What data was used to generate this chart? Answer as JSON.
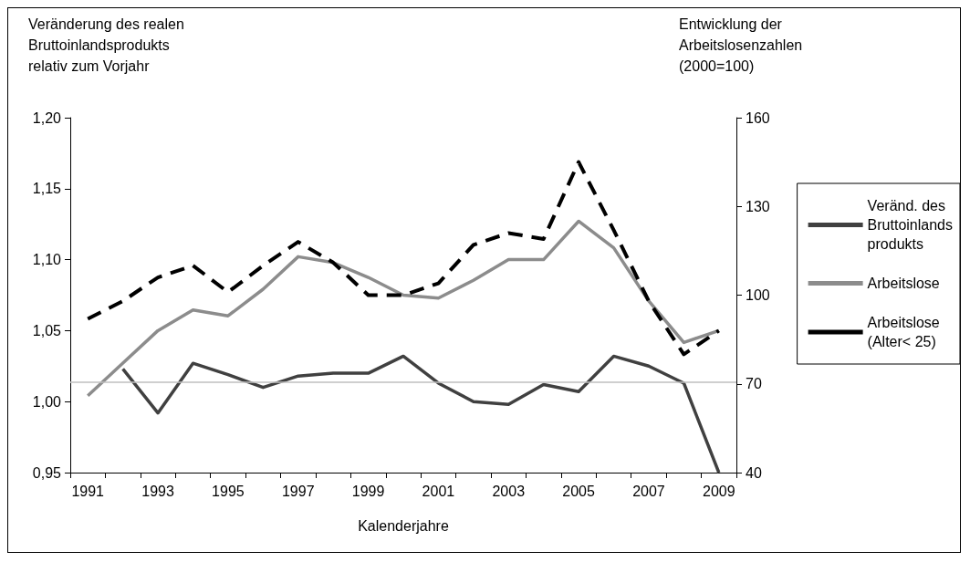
{
  "chart_data": {
    "type": "line",
    "ylabel": "Veränderung des realen\nBruttoinlandsprodukts\nrelativ zum Vorjahr",
    "y2label": "Entwicklung der\nArbeitslosenzahlen\n(2000=100)",
    "xlabel": "Kalenderjahre",
    "categories": [
      "1991",
      null,
      "1993",
      null,
      "1995",
      null,
      "1997",
      null,
      "1999",
      null,
      "2001",
      null,
      "2003",
      null,
      "2005",
      null,
      "2007",
      null,
      "2009"
    ],
    "series": [
      {
        "name": "Veränd. des\nBruttoinlands\nprodukts",
        "color": "#404040",
        "line_style": "solid",
        "values": [
          null,
          1.023,
          0.992,
          1.027,
          1.019,
          1.01,
          1.018,
          1.02,
          1.02,
          1.032,
          1.013,
          1.0,
          0.998,
          1.012,
          1.007,
          1.032,
          1.025,
          1.013,
          0.95
        ]
      },
      {
        "name": "Arbeitslose",
        "color": "#8c8c8c",
        "line_style": "solid",
        "axis": "y2",
        "values": [
          66,
          77,
          88,
          95,
          93,
          102,
          113,
          111,
          106,
          100,
          99,
          105,
          112,
          112,
          125,
          116,
          98,
          84,
          88
        ]
      },
      {
        "name": "Arbeitslose\n(Alter< 25)",
        "color": "#000000",
        "line_style": "dashed",
        "axis": "y2",
        "values": [
          92,
          98,
          106,
          110,
          101,
          110,
          118,
          111,
          100,
          100,
          104,
          117,
          121,
          119,
          145,
          122,
          98,
          80,
          88
        ]
      }
    ],
    "ylim": [
      0.95,
      1.2
    ],
    "yticks": [
      {
        "value": 0.95,
        "label": "0,95"
      },
      {
        "value": 1.0,
        "label": "1,00"
      },
      {
        "value": 1.05,
        "label": "1,05"
      },
      {
        "value": 1.1,
        "label": "1,10"
      },
      {
        "value": 1.15,
        "label": "1,15"
      },
      {
        "value": 1.2,
        "label": "1,20"
      }
    ],
    "y2lim": [
      40,
      160
    ],
    "y2ticks": [
      40,
      70,
      100,
      130,
      160
    ],
    "ref_lines": [
      {
        "axis": "y",
        "value": 1.0135,
        "label": null,
        "color": "#bfbfbf"
      }
    ],
    "grid": false,
    "legend": "right",
    "marker": "none"
  }
}
